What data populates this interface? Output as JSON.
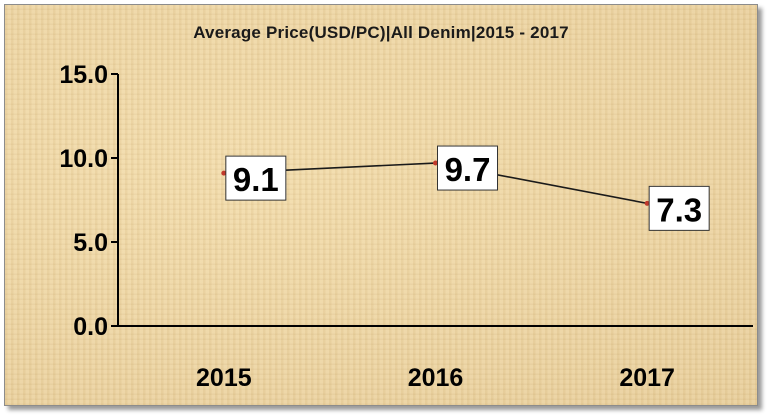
{
  "chart_data": {
    "type": "line",
    "title": "Average Price(USD/PC)|All Denim|2015 - 2017",
    "categories": [
      "2015",
      "2016",
      "2017"
    ],
    "series": [
      {
        "values": [
          9.1,
          9.7,
          7.3
        ]
      }
    ],
    "data_labels": [
      "9.1",
      "9.7",
      "7.3"
    ],
    "y_ticks": [
      "0.0",
      "5.0",
      "10.0",
      "15.0"
    ],
    "ylim": [
      0,
      15
    ],
    "grid": false,
    "legend": "none",
    "colors": {
      "line": "#1a1a1a",
      "marker": "#c0392b",
      "label_box": "#ffffff",
      "background": "#ecd5a3"
    }
  }
}
